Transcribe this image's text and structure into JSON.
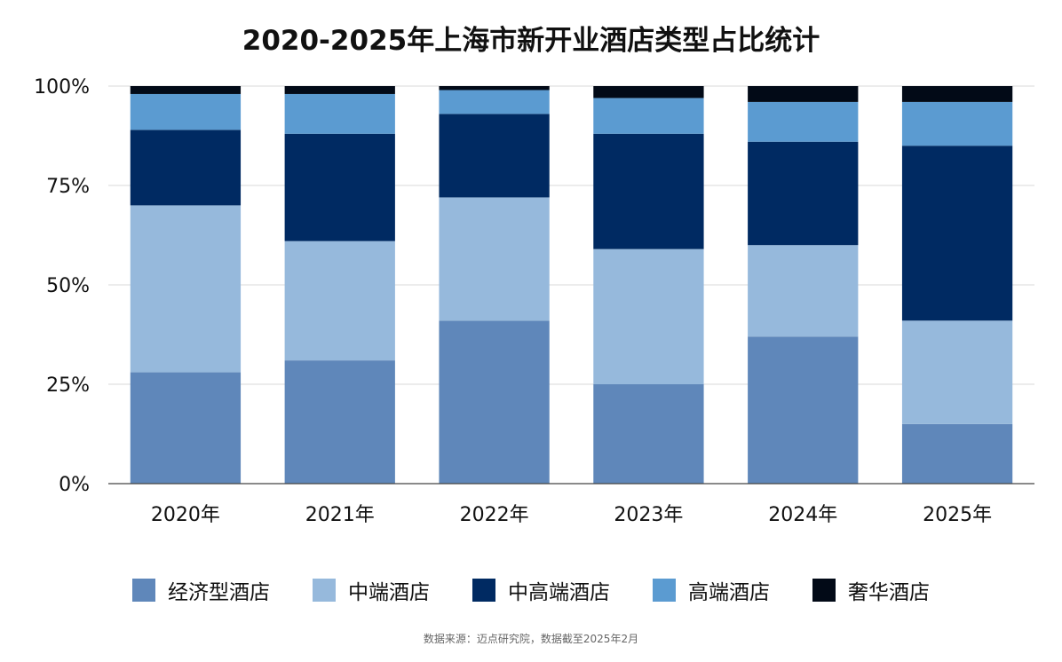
{
  "chart_data": {
    "type": "bar",
    "stacked": true,
    "title": "2020-2025年上海市新开业酒店类型占比统计",
    "categories": [
      "2020年",
      "2021年",
      "2022年",
      "2023年",
      "2024年",
      "2025年"
    ],
    "series": [
      {
        "name": "经济型酒店",
        "color": "#5f87ba",
        "values": [
          28,
          31,
          41,
          25,
          37,
          15
        ]
      },
      {
        "name": "中端酒店",
        "color": "#96b9dc",
        "values": [
          42,
          30,
          31,
          34,
          23,
          26
        ]
      },
      {
        "name": "中高端酒店",
        "color": "#002a62",
        "values": [
          19,
          27,
          21,
          29,
          26,
          44
        ]
      },
      {
        "name": "高端酒店",
        "color": "#5b9bd1",
        "values": [
          9,
          10,
          6,
          9,
          10,
          11
        ]
      },
      {
        "name": "奢华酒店",
        "color": "#020a17",
        "values": [
          2,
          2,
          1,
          3,
          4,
          4
        ]
      }
    ],
    "ylim": [
      0,
      100
    ],
    "yticks": [
      "0%",
      "25%",
      "50%",
      "75%",
      "100%"
    ],
    "ytick_values": [
      0,
      25,
      50,
      75,
      100
    ],
    "grid": true,
    "legend_position": "bottom"
  },
  "source_note": "数据来源：迈点研究院，数据截至2025年2月"
}
